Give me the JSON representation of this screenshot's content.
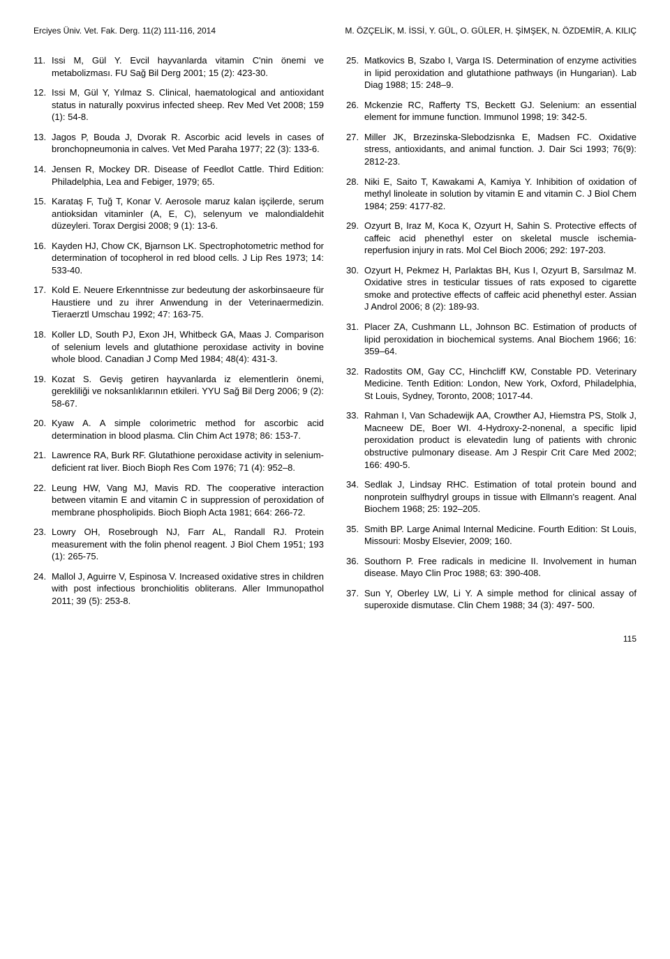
{
  "header": {
    "left": "Erciyes Üniv. Vet. Fak. Derg. 11(2) 111-116, 2014",
    "right": "M. ÖZÇELİK, M. İSSİ, Y. GÜL, O. GÜLER, H. ŞİMŞEK, N. ÖZDEMİR, A. KILIÇ"
  },
  "refs_left": [
    {
      "n": "11.",
      "t": "Issi M, Gül Y. Evcil hayvanlarda vitamin C'nin önemi ve metabolizması. FU Sağ Bil Derg 2001; 15 (2): 423-30."
    },
    {
      "n": "12.",
      "t": "Issi M, Gül Y, Yılmaz S. Clinical, haematological and antioxidant status in naturally poxvirus infected sheep. Rev Med Vet 2008; 159 (1): 54-8."
    },
    {
      "n": "13.",
      "t": "Jagos P, Bouda J, Dvorak R. Ascorbic acid levels in cases of bronchopneumonia in calves. Vet Med Paraha 1977; 22 (3): 133-6."
    },
    {
      "n": "14.",
      "t": "Jensen R, Mockey DR. Disease of Feedlot Cattle. Third Edition: Philadelphia, Lea and Febiger, 1979; 65."
    },
    {
      "n": "15.",
      "t": "Karataş F, Tuğ T, Konar V. Aerosole maruz kalan işçilerde, serum antioksidan vitaminler (A, E, C), selenyum ve malondialdehit düzeyleri. Torax Dergisi 2008; 9 (1): 13-6."
    },
    {
      "n": "16.",
      "t": "Kayden HJ, Chow CK, Bjarnson LK. Spectrophotometric method for determination of tocopherol in red blood cells. J Lip Res 1973; 14: 533-40."
    },
    {
      "n": "17.",
      "t": "Kold E. Neuere Erkenntnisse zur bedeutung der askorbinsaeure für Haustiere und zu ihrer Anwendung in der Veterinaermedizin. Tieraerztl Umschau 1992; 47: 163-75."
    },
    {
      "n": "18.",
      "t": "Koller LD, South PJ, Exon JH, Whitbeck GA, Maas J. Comparison of selenium levels and glutathione peroxidase activity in bovine whole blood. Canadian J Comp Med 1984; 48(4): 431-3."
    },
    {
      "n": "19.",
      "t": "Kozat S. Geviş getiren hayvanlarda iz elementlerin önemi, gerekliliği ve noksanlıklarının etkileri. YYU Sağ Bil Derg 2006; 9 (2): 58-67."
    },
    {
      "n": "20.",
      "t": "Kyaw A. A simple colorimetric method for ascorbic acid determination in blood plasma. Clin Chim Act 1978; 86: 153-7."
    },
    {
      "n": "21.",
      "t": "Lawrence RA, Burk RF. Glutathione peroxidase activity in selenium-deficient rat liver. Bioch Bioph Res Com 1976; 71 (4): 952–8."
    },
    {
      "n": "22.",
      "t": "Leung HW, Vang MJ, Mavis RD. The cooperative interaction between vitamin E and vitamin C in suppression of peroxidation of membrane phospholipids. Bioch Bioph Acta 1981; 664: 266-72."
    },
    {
      "n": "23.",
      "t": "Lowry OH, Rosebrough NJ, Farr AL, Randall RJ. Protein measurement with the folin phenol reagent. J Biol Chem 1951; 193 (1): 265-75."
    },
    {
      "n": "24.",
      "t": "Mallol J, Aguirre V,  Espinosa V. Increased oxidative stres in children with post infectious bronchiolitis obliterans. Aller Immunopathol 2011; 39 (5): 253-8."
    }
  ],
  "refs_right": [
    {
      "n": "25.",
      "t": "Matkovics B, Szabo I, Varga IS. Determination of enzyme activities in lipid peroxidation and glutathione pathways (in Hungarian). Lab Diag 1988; 15: 248–9."
    },
    {
      "n": "26.",
      "t": "Mckenzie RC, Rafferty TS, Beckett GJ. Selenium: an essential element for immune function. Immunol 1998; 19: 342-5."
    },
    {
      "n": "27.",
      "t": "Miller JK, Brzezinska-Slebodzisnka E, Madsen FC. Oxidative stress, antioxidants, and animal function. J. Dair Sci 1993; 76(9): 2812-23."
    },
    {
      "n": "28.",
      "t": "Niki E, Saito T, Kawakami A, Kamiya Y. Inhibition of oxidation of methyl linoleate in solution by vitamin E and vitamin C. J Biol Chem 1984; 259: 4177-82."
    },
    {
      "n": "29.",
      "t": "Ozyurt B, Iraz M, Koca K, Ozyurt H, Sahin S. Protective effects of caffeic acid phenethyl ester on skeletal muscle ischemia-reperfusion injury in rats. Mol Cel Bioch 2006; 292: 197-203."
    },
    {
      "n": "30.",
      "t": "Ozyurt H, Pekmez H, Parlaktas BH, Kus I, Ozyurt B, Sarsılmaz M. Oxidative stres in testicular tissues of rats exposed to cigarette smoke and protective effects of caffeic acid phenethyl ester. Assian J Androl 2006; 8 (2): 189-93."
    },
    {
      "n": "31.",
      "t": "Placer ZA, Cushmann LL, Johnson BC. Estimation of products of lipid peroxidation in biochemical systems. Anal Biochem 1966; 16: 359–64."
    },
    {
      "n": "32.",
      "t": "Radostits OM, Gay CC, Hinchcliff KW, Constable PD. Veterinary Medicine. Tenth Edition: London, New York, Oxford, Philadelphia, St Louis, Sydney, Toronto, 2008; 1017-44."
    },
    {
      "n": "33.",
      "t": "Rahman I, Van Schadewijk AA, Crowther AJ, Hiemstra PS, Stolk J, Macneew DE, Boer WI. 4-Hydroxy-2-nonenal, a specific lipid peroxidation product is elevatedin lung of patients with chronic obstructive pulmonary disease. Am J Respir Crit Care Med 2002; 166: 490-5."
    },
    {
      "n": "34.",
      "t": "Sedlak J, Lindsay RHC. Estimation of total protein bound and nonprotein sulfhydryl groups in tissue with Ellmann's reagent. Anal Biochem 1968; 25: 192–205."
    },
    {
      "n": "35.",
      "t": "Smith BP. Large Animal Internal Medicine. Fourth Edition: St Louis, Missouri: Mosby Elsevier, 2009; 160."
    },
    {
      "n": "36.",
      "t": "Southorn P. Free radicals in medicine II. Involvement in human disease. Mayo Clin Proc 1988; 63: 390-408."
    },
    {
      "n": "37.",
      "t": "Sun Y, Oberley LW, Li Y. A simple method for clinical assay of superoxide dismutase. Clin Chem 1988; 34 (3): 497- 500."
    }
  ],
  "page_number": "115"
}
